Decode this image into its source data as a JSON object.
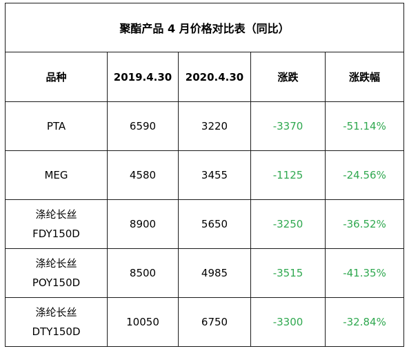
{
  "table": {
    "title": "聚酯产品 4 月价格对比表（同比）",
    "headers": [
      "品种",
      "2019.4.30",
      "2020.4.30",
      "涨跌",
      "涨跌幅"
    ],
    "rows": [
      {
        "name": [
          "PTA"
        ],
        "v2019": "6590",
        "v2020": "3220",
        "change": "-3370",
        "pct": "-51.14%"
      },
      {
        "name": [
          "MEG"
        ],
        "v2019": "4580",
        "v2020": "3455",
        "change": "-1125",
        "pct": "-24.56%"
      },
      {
        "name": [
          "涤纶长丝",
          "FDY150D"
        ],
        "v2019": "8900",
        "v2020": "5650",
        "change": "-3250",
        "pct": "-36.52%"
      },
      {
        "name": [
          "涤纶长丝",
          "POY150D"
        ],
        "v2019": "8500",
        "v2020": "4985",
        "change": "-3515",
        "pct": "-41.35%"
      },
      {
        "name": [
          "涤纶长丝",
          "DTY150D"
        ],
        "v2019": "10050",
        "v2020": "6750",
        "change": "-3300",
        "pct": "-32.84%"
      }
    ],
    "colors": {
      "negative_text": "#2fa84f",
      "border": "#1a1a1a"
    }
  }
}
